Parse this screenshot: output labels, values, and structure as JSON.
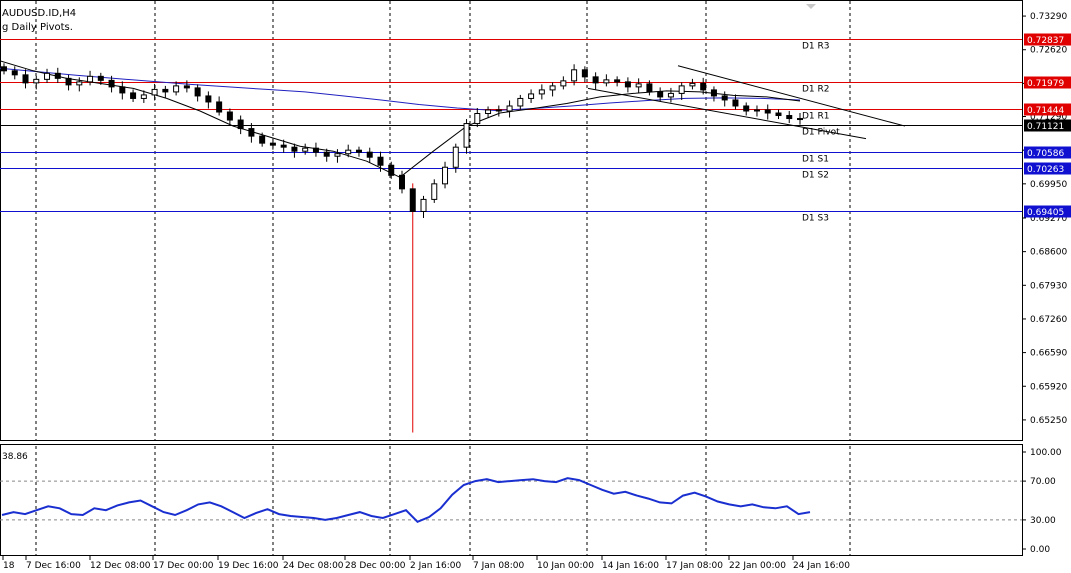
{
  "header": {
    "symbol": "AUDUSD.ID,H4",
    "indicator": "g Daily Pivots."
  },
  "colors": {
    "resistance": "#e00000",
    "support": "#1010d0",
    "pivot": "#000000",
    "ma_blue": "#2020c0",
    "ma_black": "#000000",
    "oscillator": "#1a2fd0",
    "grid": "#000000"
  },
  "chart_data": {
    "type": "candlestick",
    "symbol": "AUDUSD.ID,H4",
    "price_axis": {
      "min": 0.6485,
      "max": 0.7359,
      "ticks": [
        "0.73290",
        "0.72620",
        "0.71950",
        "0.71290",
        "0.70620",
        "0.69950",
        "0.69270",
        "0.68600",
        "0.67930",
        "0.67260",
        "0.66590",
        "0.65920",
        "0.65250"
      ]
    },
    "pivots": [
      {
        "label": "D1 R3",
        "value": 0.72837,
        "tag": "0.72837",
        "kind": "resistance"
      },
      {
        "label": "D1 R2",
        "value": 0.71979,
        "tag": "0.71979",
        "kind": "resistance"
      },
      {
        "label": "D1 R1",
        "value": 0.71444,
        "tag": "0.71444",
        "kind": "resistance"
      },
      {
        "label": "D1 Pivot",
        "value": 0.71121,
        "tag": "0.71121",
        "kind": "pivot"
      },
      {
        "label": "D1 S1",
        "value": 0.70586,
        "tag": "0.70586",
        "kind": "support"
      },
      {
        "label": "D1 S2",
        "value": 0.70263,
        "tag": "0.70263",
        "kind": "support"
      },
      {
        "label": "D1 S3",
        "value": 0.69405,
        "tag": "0.69405",
        "kind": "support"
      }
    ],
    "x_labels": [
      "18",
      "7 Dec 16:00",
      "12 Dec 08:00",
      "17 Dec 00:00",
      "19 Dec 16:00",
      "24 Dec 08:00",
      "28 Dec 00:00",
      "2 Jan 16:00",
      "7 Jan 08:00",
      "10 Jan 00:00",
      "14 Jan 16:00",
      "17 Jan 08:00",
      "22 Jan 00:00",
      "24 Jan 16:00"
    ],
    "closes": [
      0.722,
      0.7212,
      0.7196,
      0.7203,
      0.7215,
      0.7205,
      0.7192,
      0.7198,
      0.7209,
      0.7201,
      0.7188,
      0.7176,
      0.7165,
      0.7172,
      0.7183,
      0.7178,
      0.719,
      0.7186,
      0.717,
      0.7158,
      0.7138,
      0.7122,
      0.7105,
      0.709,
      0.7076,
      0.7072,
      0.7068,
      0.706,
      0.7066,
      0.7058,
      0.705,
      0.7055,
      0.7062,
      0.7058,
      0.7048,
      0.7032,
      0.7012,
      0.6985,
      0.694,
      0.6964,
      0.6995,
      0.7028,
      0.7068,
      0.7115,
      0.7135,
      0.7142,
      0.714,
      0.715,
      0.7165,
      0.7174,
      0.7182,
      0.719,
      0.72,
      0.7222,
      0.7208,
      0.7196,
      0.7202,
      0.7198,
      0.7188,
      0.7194,
      0.7178,
      0.7168,
      0.7175,
      0.719,
      0.7195,
      0.7182,
      0.717,
      0.7162,
      0.715,
      0.714,
      0.7142,
      0.7136,
      0.7131,
      0.7125,
      0.7124
    ],
    "ma_blue": [
      0.7225,
      0.7218,
      0.7211,
      0.7205,
      0.7199,
      0.7193,
      0.7188,
      0.7183,
      0.7178,
      0.717,
      0.7162,
      0.7153,
      0.7146,
      0.7141,
      0.7145,
      0.715,
      0.7156,
      0.7161,
      0.7165,
      0.7166,
      0.7165,
      0.7162
    ],
    "ma_black": [
      0.724,
      0.722,
      0.7205,
      0.7195,
      0.7185,
      0.7165,
      0.714,
      0.711,
      0.709,
      0.707,
      0.706,
      0.704,
      0.7008,
      0.706,
      0.711,
      0.7136,
      0.7145,
      0.7155,
      0.7168,
      0.7175,
      0.718,
      0.7178,
      0.7171,
      0.7168,
      0.716
    ],
    "spike_low": 0.65,
    "trendlines": [
      {
        "from": [
          "14 Jan 16:00",
          0.7185
        ],
        "to": [
          "24 Jan 16:00",
          0.7085
        ]
      },
      {
        "from": [
          "17 Jan 08:00",
          0.723
        ],
        "to": [
          "24 Jan 16:00",
          0.711
        ]
      }
    ],
    "oscillator": {
      "value_label": "38.86",
      "ticks": [
        "100.00",
        "70.00",
        "30.00",
        "0.00"
      ],
      "min": 0,
      "max": 100,
      "levels": [
        70,
        30
      ],
      "values": [
        35,
        38,
        36,
        40,
        44,
        42,
        36,
        35,
        42,
        40,
        45,
        48,
        50,
        44,
        38,
        35,
        40,
        46,
        48,
        44,
        38,
        32,
        37,
        41,
        36,
        34,
        33,
        32,
        30,
        32,
        35,
        38,
        34,
        32,
        36,
        40,
        28,
        33,
        42,
        56,
        66,
        70,
        72,
        69,
        70,
        71,
        72,
        70,
        69,
        73,
        71,
        66,
        61,
        57,
        59,
        55,
        52,
        48,
        47,
        55,
        58,
        54,
        49,
        46,
        44,
        46,
        43,
        42,
        44,
        36,
        38
      ]
    }
  }
}
